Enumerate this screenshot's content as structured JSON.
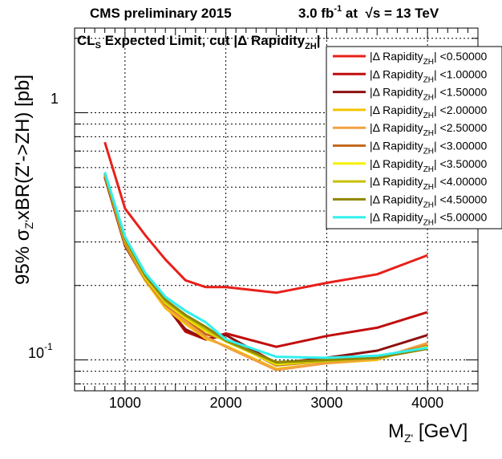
{
  "header": {
    "experiment": "CMS preliminary 2015",
    "lumi_value": "3.0 fb",
    "lumi_exp": "-1",
    "at_text": " at  ",
    "sqrt_symbol": "√",
    "energy_text": "s = 13 TeV"
  },
  "subtitle": {
    "cl": "CL",
    "cl_sub": "S",
    "text": " Expected Limit, cut |Δ Rapidity",
    "sub": "ZH",
    "end": "|"
  },
  "axis": {
    "y_prefix": "95% σ",
    "y_sub": "Z'",
    "y_suffix": "xBR(Z'->ZH) [pb]",
    "x_main": "M",
    "x_sub": "Z'",
    "x_unit": " [GeV]",
    "y_tick_1": "1",
    "y_tick_01_base": "10",
    "y_tick_01_exp": "-1"
  },
  "chart_data": {
    "type": "line",
    "x_scale": "linear",
    "y_scale": "log",
    "xlim": [
      500,
      4500
    ],
    "ylim": [
      0.075,
      2.2
    ],
    "x_ticks": [
      1000,
      2000,
      3000,
      4000
    ],
    "x_tick_labels": [
      "1000",
      "2000",
      "3000",
      "4000"
    ],
    "grid": true,
    "legend_position": "top-right",
    "legend_prefix": "|Δ Rapidity",
    "legend_sub": "ZH",
    "x": [
      800,
      1000,
      1200,
      1400,
      1600,
      1800,
      2000,
      2500,
      3000,
      3500,
      4000
    ],
    "series": [
      {
        "name": "<0.50000",
        "color": "#e8201a",
        "values": [
          0.76,
          0.41,
          0.32,
          0.255,
          0.21,
          0.197,
          0.197,
          0.187,
          0.205,
          0.222,
          0.265
        ]
      },
      {
        "name": "<1.00000",
        "color": "#c10d0d",
        "values": [
          0.55,
          0.29,
          0.215,
          0.168,
          0.13,
          0.121,
          0.128,
          0.113,
          0.125,
          0.135,
          0.156
        ]
      },
      {
        "name": "<1.50000",
        "color": "#8c1010",
        "values": [
          0.55,
          0.29,
          0.21,
          0.165,
          0.133,
          0.121,
          0.126,
          0.097,
          0.102,
          0.109,
          0.126
        ]
      },
      {
        "name": "<2.00000",
        "color": "#f5c400",
        "values": [
          0.56,
          0.295,
          0.21,
          0.162,
          0.14,
          0.122,
          0.114,
          0.092,
          0.097,
          0.1,
          0.116
        ]
      },
      {
        "name": "<2.50000",
        "color": "#f3a042",
        "values": [
          0.56,
          0.298,
          0.212,
          0.165,
          0.143,
          0.124,
          0.113,
          0.091,
          0.097,
          0.101,
          0.117
        ]
      },
      {
        "name": "<3.00000",
        "color": "#c46a1f",
        "values": [
          0.56,
          0.3,
          0.213,
          0.168,
          0.147,
          0.127,
          0.121,
          0.095,
          0.099,
          0.102,
          0.114
        ]
      },
      {
        "name": "<3.50000",
        "color": "#f7f000",
        "values": [
          0.565,
          0.305,
          0.215,
          0.17,
          0.148,
          0.131,
          0.119,
          0.096,
          0.099,
          0.102,
          0.113
        ]
      },
      {
        "name": "<4.00000",
        "color": "#c8c000",
        "values": [
          0.565,
          0.305,
          0.218,
          0.172,
          0.15,
          0.133,
          0.119,
          0.097,
          0.099,
          0.102,
          0.112
        ]
      },
      {
        "name": "<4.50000",
        "color": "#8f8400",
        "values": [
          0.57,
          0.31,
          0.22,
          0.175,
          0.152,
          0.136,
          0.12,
          0.098,
          0.1,
          0.102,
          0.111
        ]
      },
      {
        "name": "<5.00000",
        "color": "#30f0ee",
        "values": [
          0.575,
          0.315,
          0.225,
          0.18,
          0.158,
          0.142,
          0.121,
          0.103,
          0.102,
          0.104,
          0.112
        ]
      }
    ]
  }
}
